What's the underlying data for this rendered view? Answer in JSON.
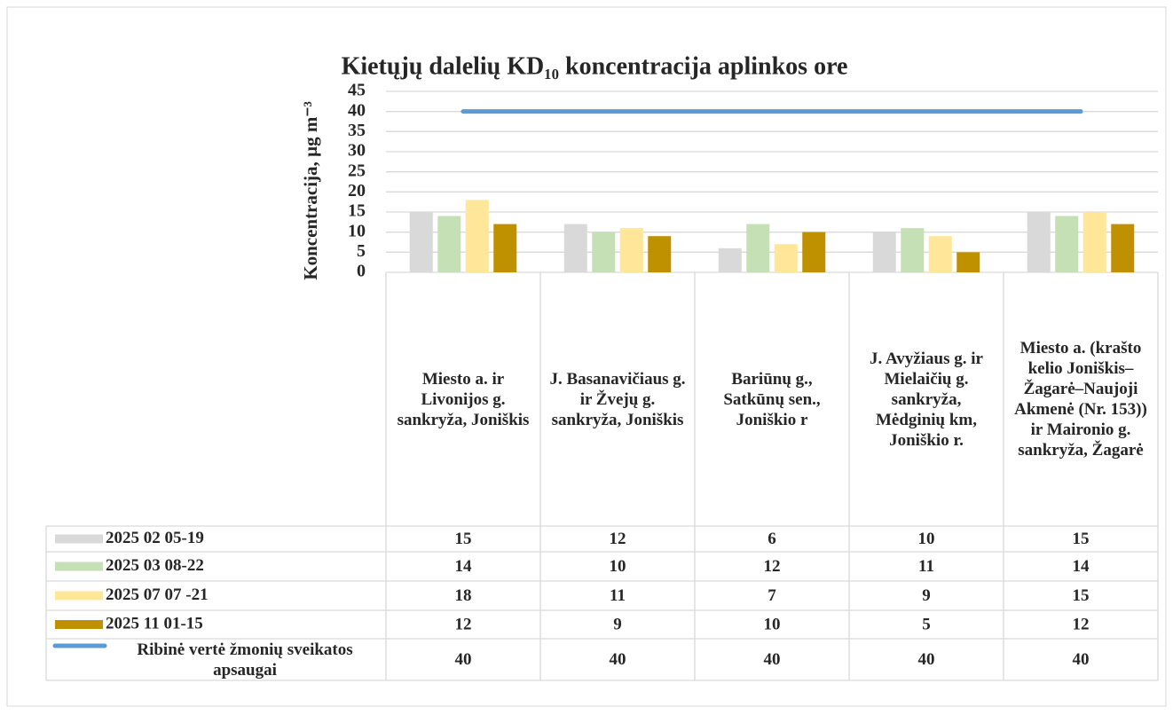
{
  "chart_data": {
    "type": "bar",
    "title": "Kietųjų dalelių KD₁₀ koncentracija aplinkos ore",
    "y_label": "Koncentracija, µg m⁻³",
    "categories": [
      "Miesto a. ir Livonijos g. sankryža, Joniškis",
      "J. Basanavičiaus g. ir Žvejų g. sankryža, Joniškis",
      "Bariūnų g., Satkūnų sen., Joniškio r",
      "J. Avyžiaus g. ir Mielaičių g. sankryža, Mėdginių km, Joniškio r.",
      "Miesto a. (krašto kelio Joniškis–Žagarė–Naujoji Akmenė (Nr. 153)) ir Maironio g. sankryža, Žagarė"
    ],
    "series": [
      {
        "name": "2025 02 05-19",
        "color": "#d9d9d9",
        "values": [
          15,
          12,
          6,
          10,
          15
        ]
      },
      {
        "name": "2025 03 08-22",
        "color": "#c5e0b4",
        "values": [
          14,
          10,
          12,
          11,
          14
        ]
      },
      {
        "name": "2025 07 07 -21",
        "color": "#ffe699",
        "values": [
          18,
          11,
          7,
          9,
          15
        ]
      },
      {
        "name": "2025 11 01-15",
        "color": "#bf9000",
        "values": [
          12,
          9,
          10,
          5,
          12
        ]
      },
      {
        "name": "Ribinė vertė žmonių sveikatos apsaugai",
        "color": "#5b9bd5",
        "type": "line",
        "values": [
          40,
          40,
          40,
          40,
          40
        ]
      }
    ],
    "ylim": [
      0,
      45
    ],
    "yticks": [
      0,
      5,
      10,
      15,
      20,
      25,
      30,
      35,
      40,
      45
    ],
    "grid": true,
    "data_table": true
  }
}
